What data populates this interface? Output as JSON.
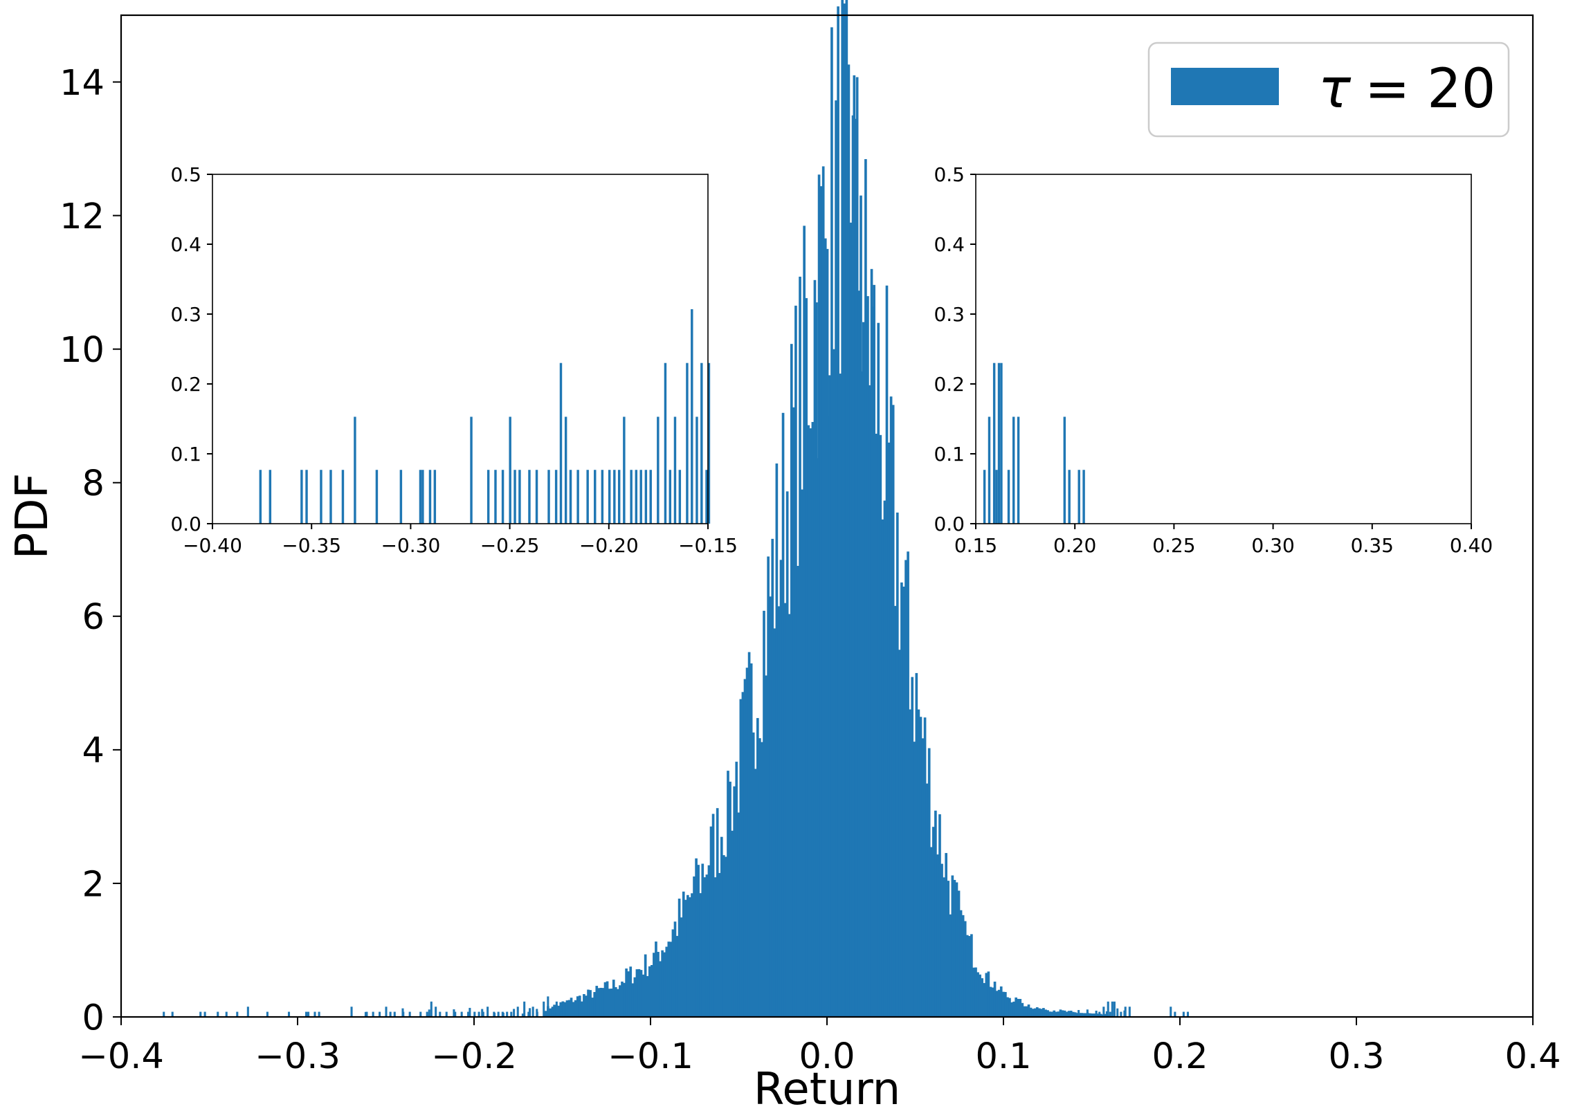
{
  "chart_data": [
    {
      "type": "bar",
      "panel": "main",
      "xlabel": "Return",
      "ylabel": "PDF",
      "xlim": [
        -0.4,
        0.4
      ],
      "ylim": [
        0,
        15
      ],
      "xticks": [
        -0.4,
        -0.3,
        -0.2,
        -0.1,
        0.0,
        0.1,
        0.2,
        0.3,
        0.4
      ],
      "xtick_labels": [
        "−0.4",
        "−0.3",
        "−0.2",
        "−0.1",
        "0.0",
        "0.1",
        "0.2",
        "0.3",
        "0.4"
      ],
      "yticks": [
        0,
        2,
        4,
        6,
        8,
        10,
        12,
        14
      ],
      "ytick_labels": [
        "0",
        "2",
        "4",
        "6",
        "8",
        "10",
        "12",
        "14"
      ],
      "legend": {
        "label": "τ = 20",
        "symbol": "τ",
        "text": "= 20",
        "location": "upper right"
      },
      "grid": false,
      "color": "#1f77b4",
      "bin_width": 0.0012,
      "series": [
        {
          "name": "τ = 20",
          "x": [
            -0.3764,
            -0.3715,
            -0.3556,
            -0.3531,
            -0.3458,
            -0.3409,
            -0.3348,
            -0.3287,
            -0.3177,
            -0.3055,
            -0.2957,
            -0.2945,
            -0.2908,
            -0.2884,
            -0.27,
            -0.2614,
            -0.2578,
            -0.2541,
            -0.2504,
            -0.248,
            -0.2456,
            -0.2407,
            -0.237,
            -0.2309,
            -0.2272,
            -0.2248,
            -0.2223,
            -0.2199,
            -0.2162,
            -0.2113,
            -0.2076,
            -0.2039,
            -0.2003,
            -0.1978,
            -0.1954,
            -0.1929,
            -0.1893,
            -0.1868,
            -0.1844,
            -0.1819,
            -0.1795,
            -0.1758,
            -0.1721,
            -0.1697,
            -0.1672,
            -0.1648,
            -0.1611,
            -0.1587,
            -0.1562,
            -0.1538,
            -0.1513,
            -0.1501
          ],
          "values": [
            0.077,
            0.077,
            0.077,
            0.077,
            0.077,
            0.077,
            0.077,
            0.153,
            0.077,
            0.077,
            0.077,
            0.077,
            0.077,
            0.077,
            0.153,
            0.077,
            0.077,
            0.077,
            0.153,
            0.077,
            0.077,
            0.077,
            0.077,
            0.077,
            0.077,
            0.23,
            0.153,
            0.077,
            0.077,
            0.077,
            0.077,
            0.077,
            0.077,
            0.077,
            0.077,
            0.153,
            0.077,
            0.077,
            0.077,
            0.077,
            0.077,
            0.153,
            0.23,
            0.077,
            0.153,
            0.077,
            0.23,
            0.307,
            0.153,
            0.23,
            0.077,
            0.23
          ]
        },
        {
          "name": "τ = 20",
          "x": [
            0.1538,
            0.1562,
            0.1587,
            0.1599,
            0.1611,
            0.1623,
            0.166,
            0.1685,
            0.1709,
            0.1942,
            0.1966,
            0.2015,
            0.2039
          ],
          "values": [
            0.077,
            0.153,
            0.23,
            0.077,
            0.23,
            0.23,
            0.077,
            0.153,
            0.153,
            0.153,
            0.077,
            0.077,
            0.077
          ]
        }
      ],
      "density_outline": {
        "x": [
          -0.16,
          -0.14,
          -0.12,
          -0.1,
          -0.09,
          -0.08,
          -0.07,
          -0.06,
          -0.05,
          -0.04,
          -0.03,
          -0.02,
          -0.01,
          0.0,
          0.005,
          0.01,
          0.015,
          0.02,
          0.03,
          0.04,
          0.05,
          0.06,
          0.07,
          0.08,
          0.09,
          0.1,
          0.11,
          0.12,
          0.14,
          0.16
        ],
        "values": [
          0.12,
          0.3,
          0.5,
          0.85,
          1.2,
          1.7,
          2.3,
          2.9,
          3.9,
          5.2,
          6.9,
          8.6,
          10.5,
          12.2,
          12.9,
          13.2,
          12.6,
          11.4,
          9.4,
          7.2,
          5.0,
          3.3,
          2.0,
          1.15,
          0.65,
          0.35,
          0.22,
          0.13,
          0.07,
          0.03
        ]
      }
    },
    {
      "type": "bar",
      "panel": "inset-left",
      "xlim": [
        -0.4,
        -0.15
      ],
      "ylim": [
        0,
        0.5
      ],
      "xticks": [
        -0.4,
        -0.35,
        -0.3,
        -0.25,
        -0.2,
        -0.15
      ],
      "xtick_labels": [
        "−0.40",
        "−0.35",
        "−0.30",
        "−0.25",
        "−0.20",
        "−0.15"
      ],
      "yticks": [
        0,
        0.1,
        0.2,
        0.3,
        0.4,
        0.5
      ],
      "ytick_labels": [
        "0.0",
        "0.1",
        "0.2",
        "0.3",
        "0.4",
        "0.5"
      ],
      "bin_width": 0.0012,
      "series": [
        {
          "name": "",
          "x": [
            -0.3764,
            -0.3715,
            -0.3556,
            -0.3531,
            -0.3458,
            -0.3409,
            -0.3348,
            -0.3287,
            -0.3177,
            -0.3055,
            -0.2957,
            -0.2945,
            -0.2908,
            -0.2884,
            -0.27,
            -0.2614,
            -0.2578,
            -0.2541,
            -0.2504,
            -0.248,
            -0.2456,
            -0.2407,
            -0.237,
            -0.2309,
            -0.2272,
            -0.2248,
            -0.2223,
            -0.2199,
            -0.2162,
            -0.2113,
            -0.2076,
            -0.2039,
            -0.2003,
            -0.1978,
            -0.1954,
            -0.1929,
            -0.1893,
            -0.1868,
            -0.1844,
            -0.1819,
            -0.1795,
            -0.1758,
            -0.1721,
            -0.1697,
            -0.1672,
            -0.1648,
            -0.1611,
            -0.1587,
            -0.1562,
            -0.1538,
            -0.1513,
            -0.1501
          ],
          "values": [
            0.077,
            0.077,
            0.077,
            0.077,
            0.077,
            0.077,
            0.077,
            0.153,
            0.077,
            0.077,
            0.077,
            0.077,
            0.077,
            0.077,
            0.153,
            0.077,
            0.077,
            0.077,
            0.153,
            0.077,
            0.077,
            0.077,
            0.077,
            0.077,
            0.077,
            0.23,
            0.153,
            0.077,
            0.077,
            0.077,
            0.077,
            0.077,
            0.077,
            0.077,
            0.077,
            0.153,
            0.077,
            0.077,
            0.077,
            0.077,
            0.077,
            0.153,
            0.23,
            0.077,
            0.153,
            0.077,
            0.23,
            0.307,
            0.153,
            0.23,
            0.077,
            0.23
          ]
        }
      ]
    },
    {
      "type": "bar",
      "panel": "inset-right",
      "xlim": [
        0.15,
        0.4
      ],
      "ylim": [
        0,
        0.5
      ],
      "xticks": [
        0.15,
        0.2,
        0.25,
        0.3,
        0.35,
        0.4
      ],
      "xtick_labels": [
        "0.15",
        "0.20",
        "0.25",
        "0.30",
        "0.35",
        "0.40"
      ],
      "yticks": [
        0,
        0.1,
        0.2,
        0.3,
        0.4,
        0.5
      ],
      "ytick_labels": [
        "0.0",
        "0.1",
        "0.2",
        "0.3",
        "0.4",
        "0.5"
      ],
      "bin_width": 0.0012,
      "series": [
        {
          "name": "",
          "x": [
            0.1538,
            0.1562,
            0.1587,
            0.1599,
            0.1611,
            0.1623,
            0.166,
            0.1685,
            0.1709,
            0.1942,
            0.1966,
            0.2015,
            0.2039
          ],
          "values": [
            0.077,
            0.153,
            0.23,
            0.077,
            0.23,
            0.23,
            0.077,
            0.153,
            0.153,
            0.153,
            0.077,
            0.077,
            0.077
          ]
        }
      ]
    }
  ]
}
